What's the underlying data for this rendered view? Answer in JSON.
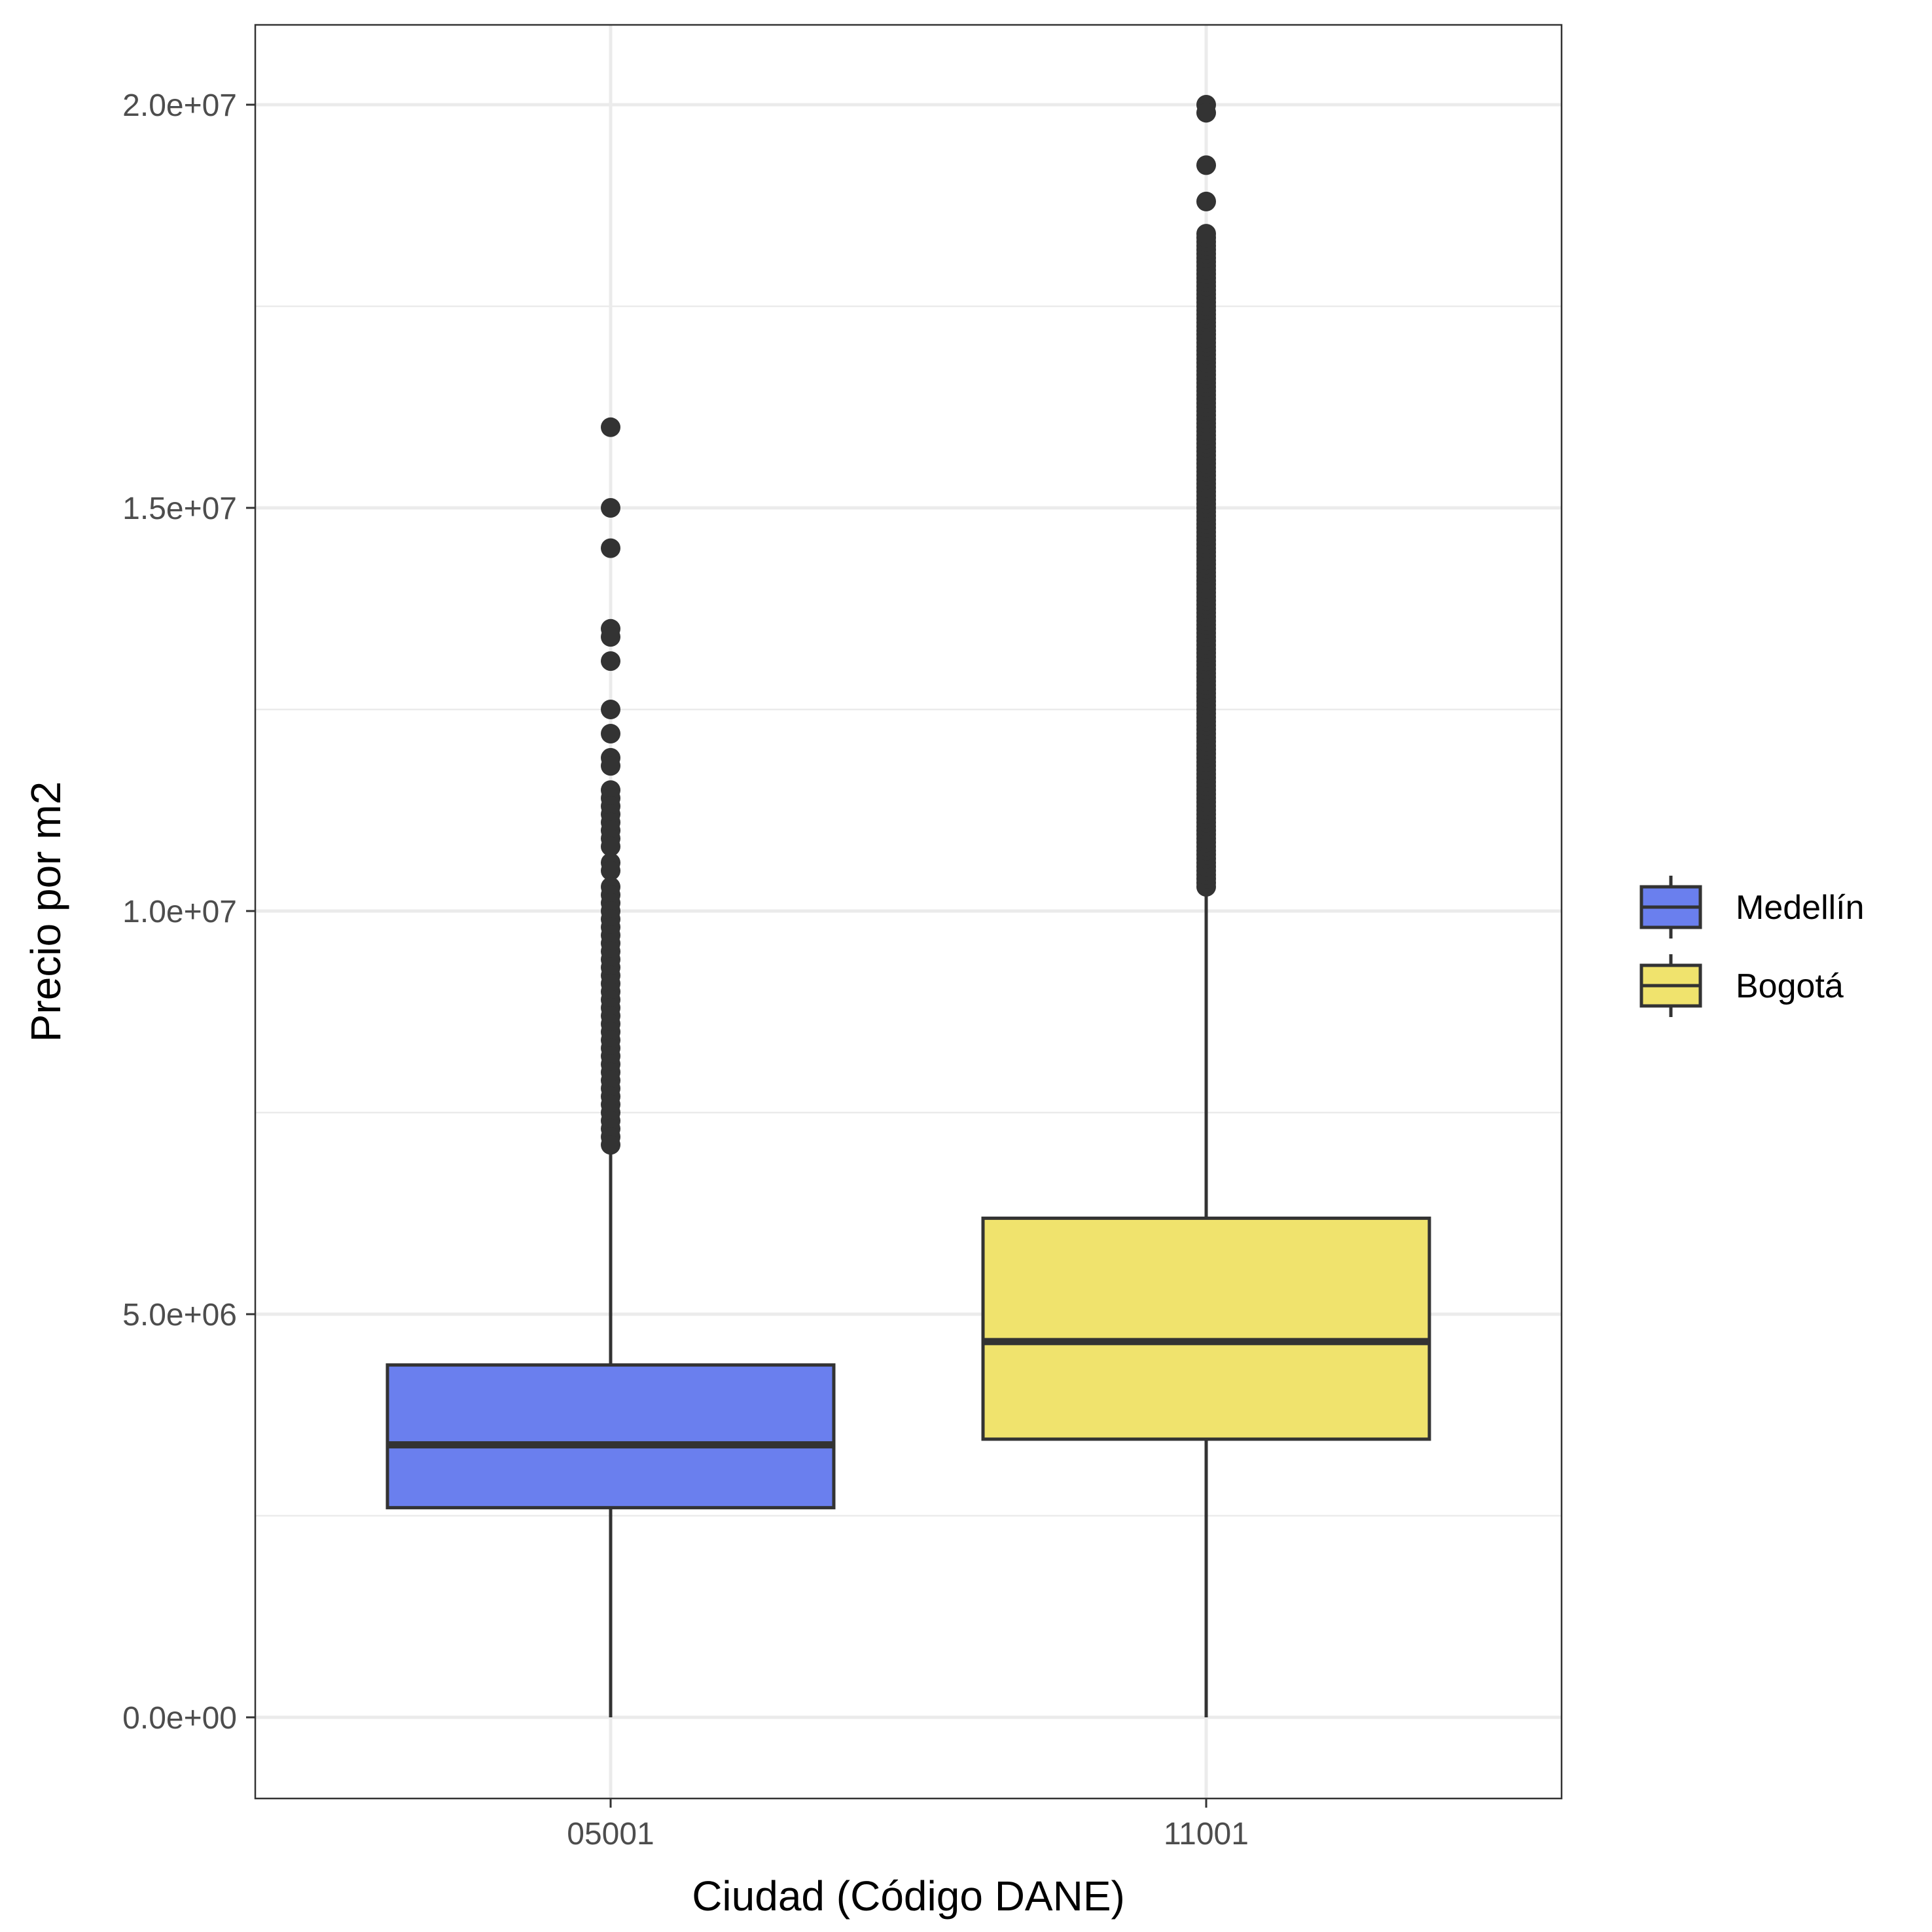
{
  "chart_data": {
    "type": "boxplot",
    "xlabel": "Ciudad (Código DANE)",
    "ylabel": "Precio por m2",
    "ylim": [
      -1000000,
      21000000
    ],
    "y_ticks": [
      0,
      5000000,
      10000000,
      15000000,
      20000000
    ],
    "y_tick_labels": [
      "0.0e+00",
      "5.0e+06",
      "1.0e+07",
      "1.5e+07",
      "2.0e+07"
    ],
    "y_minor_ticks": [
      2500000,
      7500000,
      12500000,
      17500000
    ],
    "categories": [
      "05001",
      "11001"
    ],
    "grid": true,
    "legend_position": "right",
    "series": [
      {
        "name": "Medellín",
        "category": "05001",
        "color": "#6a7fee",
        "whisker_low": 0,
        "q1": 2600000,
        "median": 3380000,
        "q3": 4370000,
        "whisker_high": 7000000,
        "outliers": [
          16000000,
          15000000,
          14500000,
          13500000,
          13400000,
          13100000,
          12500000,
          12200000,
          11900000,
          11800000,
          11500000,
          11400000,
          11300000,
          11200000,
          11100000,
          11000000,
          10900000,
          10800000,
          10600000,
          10500000,
          10300000,
          10200000,
          10100000,
          10000000,
          9900000,
          9800000,
          9700000,
          9600000,
          9500000,
          9400000,
          9300000,
          9200000,
          9100000,
          9000000,
          8900000,
          8800000,
          8700000,
          8600000,
          8500000,
          8400000,
          8300000,
          8200000,
          8100000,
          8000000,
          7900000,
          7800000,
          7700000,
          7600000,
          7500000,
          7400000,
          7300000,
          7200000,
          7100000
        ]
      },
      {
        "name": "Bogotá",
        "category": "11001",
        "color": "#f0e36d",
        "whisker_low": 0,
        "q1": 3450000,
        "median": 4660000,
        "q3": 6190000,
        "whisker_high": 10250000,
        "outlier_range": [
          10300000,
          18400000
        ],
        "outliers": [
          20000000,
          19900000,
          19250000,
          18800000
        ]
      }
    ]
  }
}
